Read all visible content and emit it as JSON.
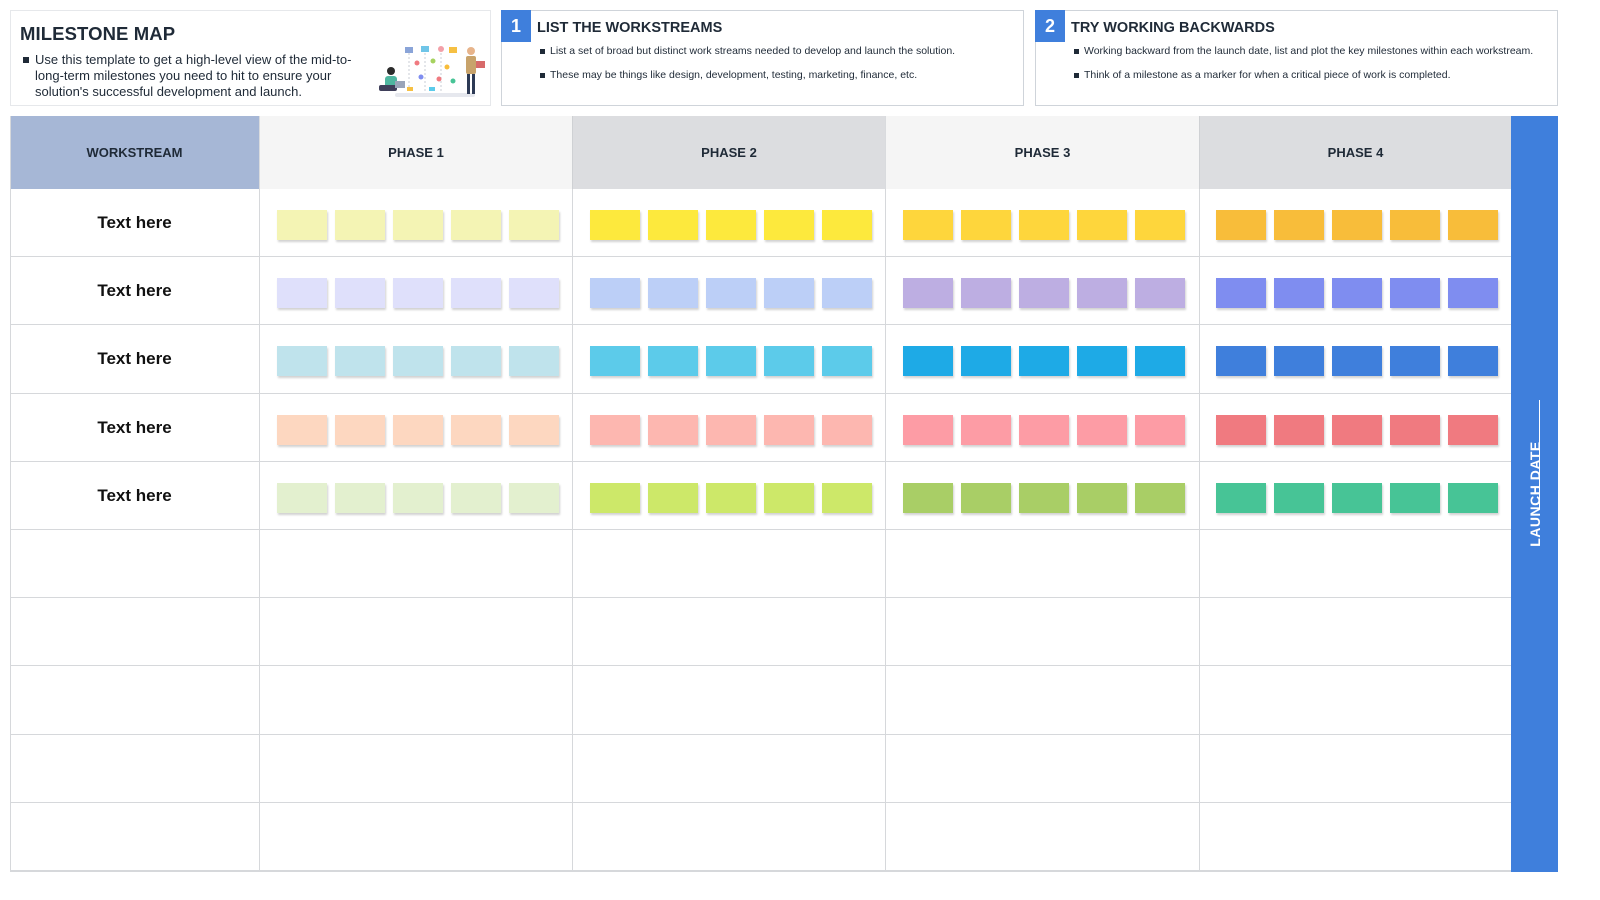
{
  "intro": {
    "title": "MILESTONE MAP",
    "bullet": "Use this template to get a high-level view of the mid-to-long-term milestones you need to hit to ensure your solution's successful development and launch."
  },
  "step1": {
    "number": "1",
    "title": "LIST THE WORKSTREAMS",
    "bullets": [
      "List a set of broad but distinct work streams needed to develop and launch the solution.",
      "These may be things like design, development, testing, marketing, finance, etc."
    ]
  },
  "step2": {
    "number": "2",
    "title": "TRY WORKING BACKWARDS",
    "bullets": [
      "Working backward from the launch date, list and plot the key milestones within each workstream.",
      "Think of a milestone as a marker for when a critical piece of work is completed."
    ]
  },
  "board": {
    "workstream_header": "WORKSTREAM",
    "phases": [
      "PHASE 1",
      "PHASE 2",
      "PHASE 3",
      "PHASE 4"
    ],
    "launch_label": "LAUNCH DATE",
    "rows": [
      {
        "label": "Text here",
        "colors": [
          "#f4f4b4",
          "#fde93d",
          "#fed63c",
          "#f8bd3a"
        ]
      },
      {
        "label": "Text here",
        "colors": [
          "#dfe0fb",
          "#bccff7",
          "#bdaee2",
          "#7f8df0"
        ]
      },
      {
        "label": "Text here",
        "colors": [
          "#bfe3ec",
          "#5ccbea",
          "#1eaae6",
          "#3f7fdc"
        ]
      },
      {
        "label": "Text here",
        "colors": [
          "#fdd7c0",
          "#fdb7b0",
          "#fd9ca5",
          "#f07a80"
        ]
      },
      {
        "label": "Text here",
        "colors": [
          "#e3f0cf",
          "#cde869",
          "#a9ce66",
          "#47c496"
        ]
      }
    ],
    "empty_rows": 5,
    "stickies_per_phase": 5
  }
}
